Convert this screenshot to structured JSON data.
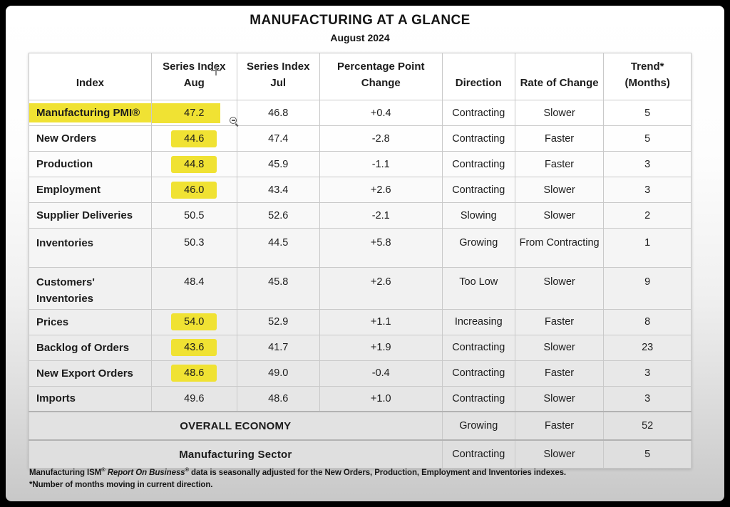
{
  "header": {
    "title": "MANUFACTURING AT A GLANCE",
    "subtitle": "August 2024"
  },
  "table": {
    "columns": [
      "Index",
      "Series Index\nAug",
      "Series Index\nJul",
      "Percentage Point\nChange",
      "Direction",
      "Rate of Change",
      "Trend*\n(Months)"
    ],
    "rows": [
      {
        "label": "Manufacturing PMI®",
        "aug": "47.2",
        "jul": "46.8",
        "change": "+0.4",
        "direction": "Contracting",
        "rate": "Slower",
        "trend": "5",
        "highlight": "row"
      },
      {
        "label": "New Orders",
        "aug": "44.6",
        "jul": "47.4",
        "change": "-2.8",
        "direction": "Contracting",
        "rate": "Faster",
        "trend": "5",
        "highlight": "aug"
      },
      {
        "label": "Production",
        "aug": "44.8",
        "jul": "45.9",
        "change": "-1.1",
        "direction": "Contracting",
        "rate": "Faster",
        "trend": "3",
        "highlight": "aug"
      },
      {
        "label": "Employment",
        "aug": "46.0",
        "jul": "43.4",
        "change": "+2.6",
        "direction": "Contracting",
        "rate": "Slower",
        "trend": "3",
        "highlight": "aug"
      },
      {
        "label": "Supplier Deliveries",
        "aug": "50.5",
        "jul": "52.6",
        "change": "-2.1",
        "direction": "Slowing",
        "rate": "Slower",
        "trend": "2",
        "highlight": "none"
      },
      {
        "label": "Inventories",
        "aug": "50.3",
        "jul": "44.5",
        "change": "+5.8",
        "direction": "Growing",
        "rate": "From Contracting",
        "trend": "1",
        "highlight": "none"
      },
      {
        "label": "Customers' Inventories",
        "aug": "48.4",
        "jul": "45.8",
        "change": "+2.6",
        "direction": "Too Low",
        "rate": "Slower",
        "trend": "9",
        "highlight": "none"
      },
      {
        "label": "Prices",
        "aug": "54.0",
        "jul": "52.9",
        "change": "+1.1",
        "direction": "Increasing",
        "rate": "Faster",
        "trend": "8",
        "highlight": "aug"
      },
      {
        "label": "Backlog of Orders",
        "aug": "43.6",
        "jul": "41.7",
        "change": "+1.9",
        "direction": "Contracting",
        "rate": "Slower",
        "trend": "23",
        "highlight": "aug"
      },
      {
        "label": "New Export Orders",
        "aug": "48.6",
        "jul": "49.0",
        "change": "-0.4",
        "direction": "Contracting",
        "rate": "Faster",
        "trend": "3",
        "highlight": "aug"
      },
      {
        "label": "Imports",
        "aug": "49.6",
        "jul": "48.6",
        "change": "+1.0",
        "direction": "Contracting",
        "rate": "Slower",
        "trend": "3",
        "highlight": "none"
      }
    ],
    "summary_rows": [
      {
        "label": "OVERALL ECONOMY",
        "direction": "Growing",
        "rate": "Faster",
        "trend": "52"
      },
      {
        "label": "Manufacturing Sector",
        "direction": "Contracting",
        "rate": "Slower",
        "trend": "5"
      }
    ]
  },
  "footnotes": {
    "line1_prefix": "Manufacturing ISM",
    "line1_reg1": "®",
    "line1_italic": " Report On Business",
    "line1_reg2": "®",
    "line1_suffix": " data is seasonally adjusted for the New Orders, Production, Employment and Inventories indexes.",
    "line2": "*Number of months moving in current direction."
  },
  "colors": {
    "highlight_yellow": "#f0e233",
    "frame_black": "#000000",
    "grid_gray": "#c9c9c9",
    "summary_row_gray": "#e2e2e2",
    "text": "#1c1c1c"
  },
  "icons": {
    "crosshair_cursor": "plus-crosshair",
    "zoom_out_cursor": "magnifier-minus"
  }
}
